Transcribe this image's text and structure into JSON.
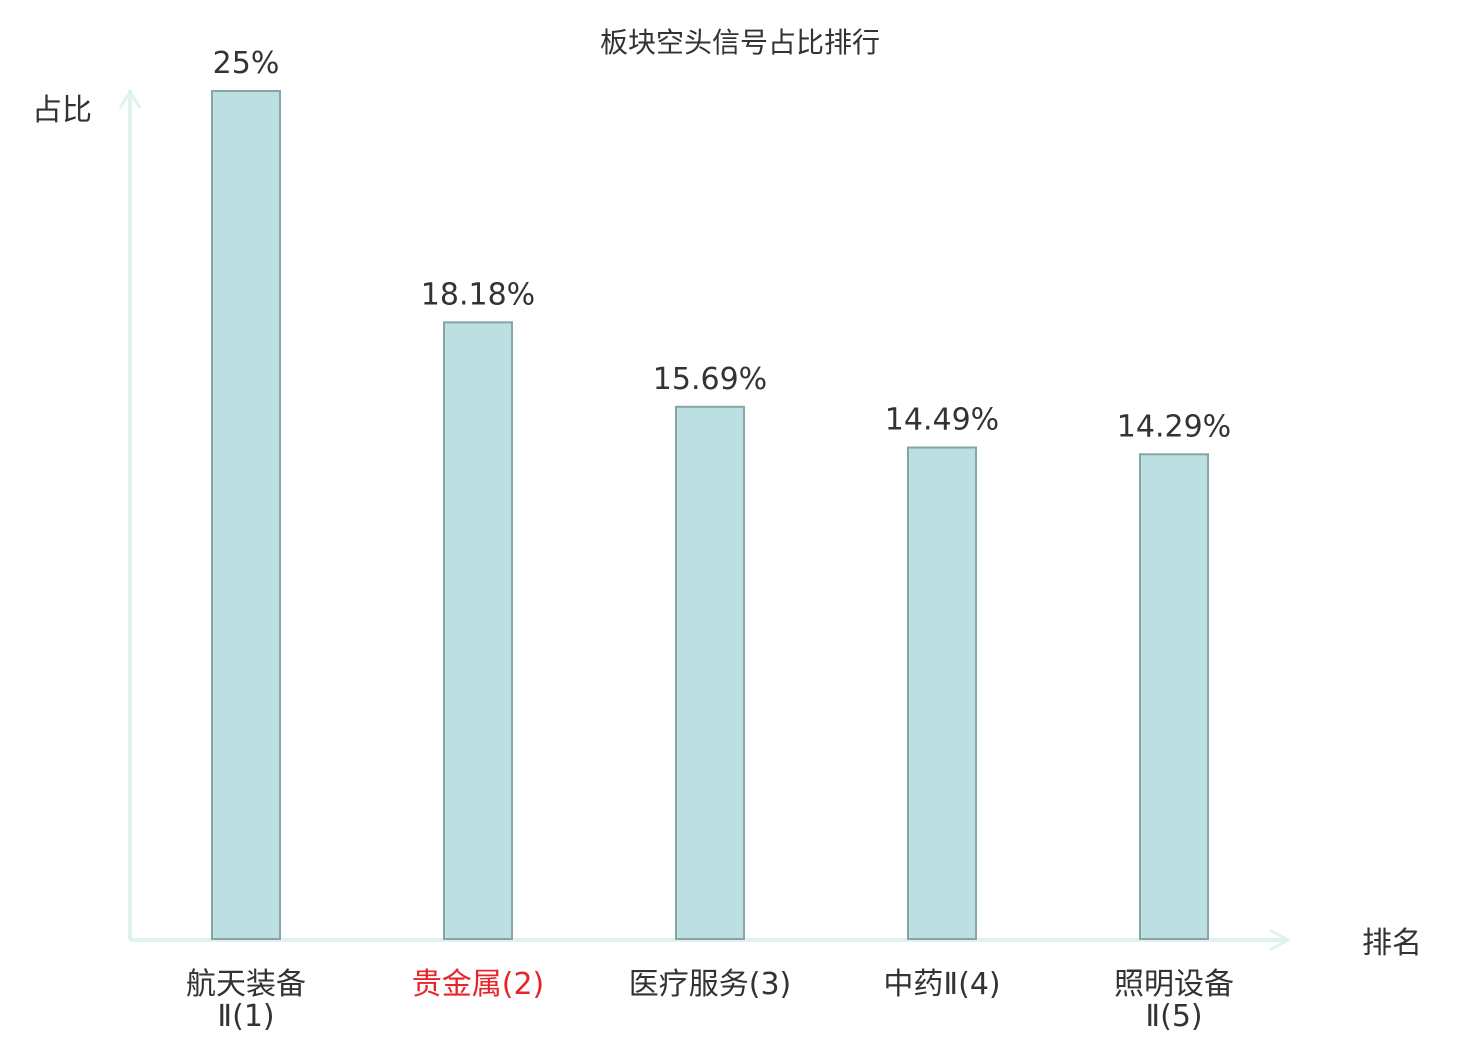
{
  "chart_data": {
    "type": "bar",
    "title": "板块空头信号占比排行",
    "ylabel": "占比",
    "xlabel": "排名",
    "categories": [
      {
        "lines": [
          "航天装备",
          "Ⅱ(1)"
        ],
        "highlight": false
      },
      {
        "lines": [
          "贵金属(2)"
        ],
        "highlight": true
      },
      {
        "lines": [
          "医疗服务(3)"
        ],
        "highlight": false
      },
      {
        "lines": [
          "中药Ⅱ(4)"
        ],
        "highlight": false
      },
      {
        "lines": [
          "照明设备",
          "Ⅱ(5)"
        ],
        "highlight": false
      }
    ],
    "values": [
      25,
      18.18,
      15.69,
      14.49,
      14.29
    ],
    "value_labels": [
      "25%",
      "18.18%",
      "15.69%",
      "14.49%",
      "14.29%"
    ],
    "ylim": [
      0,
      25
    ],
    "grid": false,
    "legend": "none",
    "colors": {
      "bar_fill": "#bce0e1",
      "bar_stroke": "#86a5a6",
      "axis": "#dff2ef",
      "text": "#333333",
      "highlight": "#e8242a"
    }
  }
}
